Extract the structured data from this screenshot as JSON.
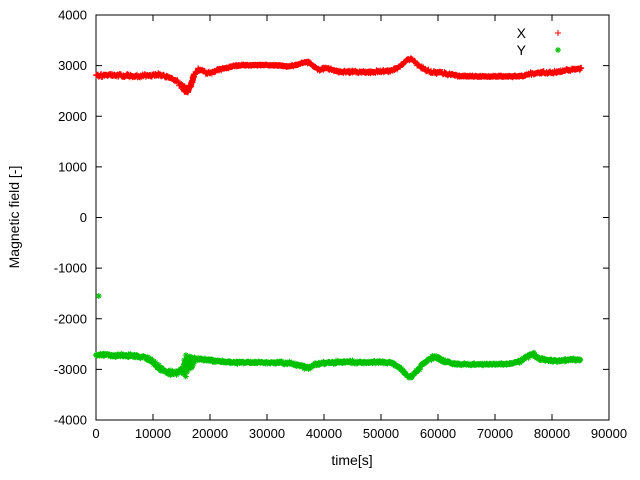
{
  "chart_data": {
    "type": "scatter",
    "title": "",
    "xlabel": "time[s]",
    "ylabel": "Magnetic field [-]",
    "xlim": [
      0,
      90000
    ],
    "ylim": [
      -4000,
      4000
    ],
    "xtick_step": 10000,
    "ytick_step": 1000,
    "grid": false,
    "axis_color": "#000000",
    "legend": {
      "position": "top-right",
      "entries": [
        {
          "label": "X",
          "marker": "plus",
          "color": "#ff0000"
        },
        {
          "label": "Y",
          "marker": "asterisk",
          "color": "#00c000"
        }
      ]
    },
    "series": [
      {
        "name": "X",
        "marker": "plus",
        "color": "#ff0000",
        "seed": 101,
        "sample_step": 90,
        "dense": [
          [
            15000,
            17200,
            22
          ]
        ],
        "baseline": [
          [
            0,
            2810,
            45
          ],
          [
            2500,
            2815,
            45
          ],
          [
            5000,
            2800,
            50
          ],
          [
            7500,
            2790,
            50
          ],
          [
            9500,
            2810,
            45
          ],
          [
            11000,
            2830,
            40
          ],
          [
            12500,
            2780,
            45
          ],
          [
            14000,
            2720,
            55
          ],
          [
            15200,
            2580,
            80
          ],
          [
            16000,
            2500,
            80
          ],
          [
            16600,
            2600,
            70
          ],
          [
            17200,
            2800,
            60
          ],
          [
            17900,
            2930,
            45
          ],
          [
            18600,
            2900,
            40
          ],
          [
            19500,
            2850,
            40
          ],
          [
            20500,
            2870,
            40
          ],
          [
            21500,
            2920,
            40
          ],
          [
            22500,
            2940,
            35
          ],
          [
            23500,
            2970,
            30
          ],
          [
            24500,
            3000,
            25
          ],
          [
            26000,
            3010,
            18
          ],
          [
            28000,
            3010,
            16
          ],
          [
            30000,
            3010,
            16
          ],
          [
            32000,
            3005,
            18
          ],
          [
            33500,
            2990,
            25
          ],
          [
            35000,
            3000,
            30
          ],
          [
            36200,
            3050,
            35
          ],
          [
            37200,
            3070,
            35
          ],
          [
            38200,
            2990,
            40
          ],
          [
            39200,
            2910,
            40
          ],
          [
            40200,
            2960,
            35
          ],
          [
            41200,
            2930,
            35
          ],
          [
            42500,
            2880,
            40
          ],
          [
            44000,
            2880,
            40
          ],
          [
            46000,
            2870,
            40
          ],
          [
            48000,
            2870,
            38
          ],
          [
            50000,
            2885,
            38
          ],
          [
            52000,
            2900,
            38
          ],
          [
            53500,
            3000,
            40
          ],
          [
            54700,
            3130,
            40
          ],
          [
            55500,
            3130,
            38
          ],
          [
            56500,
            3010,
            40
          ],
          [
            57500,
            2930,
            42
          ],
          [
            59000,
            2870,
            45
          ],
          [
            60500,
            2860,
            42
          ],
          [
            62000,
            2830,
            35
          ],
          [
            63500,
            2795,
            26
          ],
          [
            65000,
            2790,
            22
          ],
          [
            67000,
            2785,
            20
          ],
          [
            69000,
            2785,
            20
          ],
          [
            71000,
            2788,
            20
          ],
          [
            73000,
            2790,
            22
          ],
          [
            75000,
            2800,
            28
          ],
          [
            76500,
            2850,
            40
          ],
          [
            78000,
            2865,
            40
          ],
          [
            79500,
            2855,
            38
          ],
          [
            81000,
            2880,
            42
          ],
          [
            82500,
            2905,
            45
          ],
          [
            84000,
            2920,
            42
          ],
          [
            85200,
            2945,
            35
          ]
        ],
        "outliers": []
      },
      {
        "name": "Y",
        "marker": "asterisk",
        "color": "#00c000",
        "seed": 202,
        "sample_step": 90,
        "dense": [
          [
            15400,
            16900,
            18
          ]
        ],
        "baseline": [
          [
            0,
            -2710,
            38
          ],
          [
            2000,
            -2720,
            42
          ],
          [
            4000,
            -2730,
            45
          ],
          [
            6000,
            -2735,
            48
          ],
          [
            8000,
            -2745,
            48
          ],
          [
            9300,
            -2790,
            52
          ],
          [
            10300,
            -2890,
            58
          ],
          [
            11300,
            -2990,
            65
          ],
          [
            12300,
            -3050,
            75
          ],
          [
            13300,
            -3075,
            75
          ],
          [
            14300,
            -3065,
            75
          ],
          [
            15100,
            -3010,
            110
          ],
          [
            15700,
            -2920,
            260
          ],
          [
            16200,
            -2900,
            280
          ],
          [
            16700,
            -2870,
            160
          ],
          [
            17300,
            -2800,
            60
          ],
          [
            18200,
            -2790,
            48
          ],
          [
            19200,
            -2805,
            42
          ],
          [
            20500,
            -2825,
            38
          ],
          [
            22000,
            -2850,
            34
          ],
          [
            24000,
            -2860,
            32
          ],
          [
            26000,
            -2862,
            28
          ],
          [
            28000,
            -2862,
            28
          ],
          [
            30000,
            -2870,
            32
          ],
          [
            32000,
            -2862,
            32
          ],
          [
            34000,
            -2880,
            38
          ],
          [
            35500,
            -2920,
            48
          ],
          [
            36500,
            -2950,
            52
          ],
          [
            37500,
            -2955,
            52
          ],
          [
            38500,
            -2905,
            44
          ],
          [
            40000,
            -2870,
            38
          ],
          [
            42000,
            -2862,
            38
          ],
          [
            44000,
            -2852,
            38
          ],
          [
            46000,
            -2860,
            38
          ],
          [
            48000,
            -2860,
            36
          ],
          [
            50000,
            -2852,
            36
          ],
          [
            52000,
            -2870,
            42
          ],
          [
            53500,
            -2990,
            52
          ],
          [
            54600,
            -3120,
            52
          ],
          [
            55400,
            -3135,
            48
          ],
          [
            56300,
            -3020,
            52
          ],
          [
            57200,
            -2905,
            52
          ],
          [
            58200,
            -2815,
            58
          ],
          [
            59200,
            -2760,
            62
          ],
          [
            60200,
            -2785,
            58
          ],
          [
            61500,
            -2850,
            42
          ],
          [
            63000,
            -2890,
            32
          ],
          [
            65000,
            -2900,
            28
          ],
          [
            67000,
            -2900,
            26
          ],
          [
            69000,
            -2900,
            26
          ],
          [
            71000,
            -2898,
            26
          ],
          [
            73000,
            -2888,
            28
          ],
          [
            74500,
            -2830,
            42
          ],
          [
            75800,
            -2725,
            52
          ],
          [
            76800,
            -2705,
            52
          ],
          [
            77800,
            -2780,
            46
          ],
          [
            79000,
            -2818,
            38
          ],
          [
            80500,
            -2830,
            38
          ],
          [
            82000,
            -2820,
            42
          ],
          [
            83500,
            -2812,
            42
          ],
          [
            85000,
            -2805,
            38
          ]
        ],
        "outliers": [
          [
            500,
            -1550
          ]
        ]
      }
    ]
  }
}
